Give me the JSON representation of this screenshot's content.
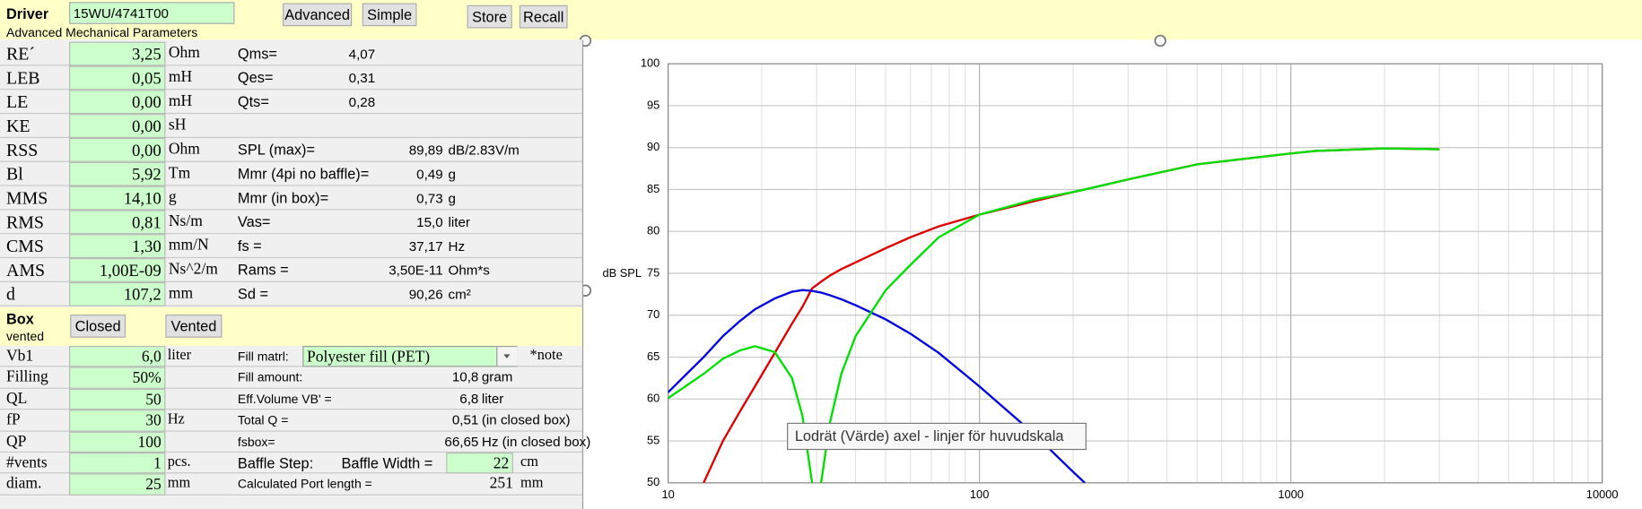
{
  "driver": {
    "label": "Driver",
    "model": "15WU/4741T00",
    "buttons": [
      "Advanced",
      "Simple",
      "Store",
      "Recall"
    ],
    "subtitle": "Advanced Mechanical Parameters"
  },
  "params": [
    {
      "label": "RE´",
      "value": "3,25",
      "unit": "Ohm",
      "name": "Qms=",
      "result": "4,07"
    },
    {
      "label": "LEB",
      "value": "0,05",
      "unit": "mH",
      "name": "Qes=",
      "result": "0,31"
    },
    {
      "label": "LE",
      "value": "0,00",
      "unit": "mH",
      "name": "Qts=",
      "result": "0,28"
    },
    {
      "label": "KE",
      "value": "0,00",
      "unit": "sH"
    },
    {
      "label": "RSS",
      "value": "0,00",
      "unit": "Ohm",
      "name": "SPL (max)=",
      "result": "89,89",
      "result_unit": "dB/2.83V/m"
    },
    {
      "label": "Bl",
      "value": "5,92",
      "unit": "Tm",
      "name": "Mmr (4pi no baffle)=",
      "result": "0,49",
      "result_unit": "g"
    },
    {
      "label": "MMS",
      "value": "14,10",
      "unit": "g",
      "name": "Mmr (in box)=",
      "result": "0,73",
      "result_unit": "g"
    },
    {
      "label": "RMS",
      "value": "0,81",
      "unit": "Ns/m",
      "name": "Vas=",
      "result": "15,0",
      "result_unit": "liter"
    },
    {
      "label": "CMS",
      "value": "1,30",
      "unit": "mm/N",
      "name": "fs =",
      "result": "37,17",
      "result_unit": "Hz"
    },
    {
      "label": "AMS",
      "value": "1,00E-09",
      "unit": "Ns^2/m",
      "name": "Rams =",
      "result": "3,50E-11",
      "result_unit": "Ohm*s"
    },
    {
      "label": "d",
      "value": "107,2",
      "unit": "mm",
      "name": "Sd =",
      "result": "90,26",
      "result_unit": "cm²"
    }
  ],
  "box": {
    "label": "Box",
    "mode": "vented",
    "buttons": [
      "Closed",
      "Vented"
    ],
    "rows": [
      {
        "label": "Vb1",
        "value": "6,0",
        "unit": "liter",
        "name": "Fill matrl:",
        "select": "Polyester fill (PET)",
        "note": "*note"
      },
      {
        "label": "Filling",
        "value": "50%",
        "name": "Fill amount:",
        "result": "10,8",
        "result_unit": "gram"
      },
      {
        "label": "QL",
        "value": "50",
        "name": "Eff.Volume VB' =",
        "result": "6,8",
        "result_unit": "liter"
      },
      {
        "label": "fP",
        "value": "30",
        "unit": "Hz",
        "name": "Total Q =",
        "result": "0,51",
        "result_unit": "(in closed box)"
      },
      {
        "label": "QP",
        "value": "100",
        "name": "fsbox=",
        "result": "66,65",
        "result_unit": "Hz  (in closed box)"
      },
      {
        "label": "#vents",
        "value": "1",
        "unit": "pcs.",
        "name": "Baffle Step:",
        "name2": "Baffle Width  =",
        "input": "22",
        "result_unit": "cm"
      },
      {
        "label": "diam.",
        "value": "25",
        "unit": "mm",
        "name": "Calculated Port length =",
        "result": "251",
        "result_unit": "mm"
      }
    ]
  },
  "chart_data": {
    "type": "line",
    "y_label": "dB SPL",
    "annotation": "Lodrät (Värde) axel - linjer för huvudskala",
    "x": [
      10,
      13,
      15,
      17,
      19,
      22,
      25,
      27,
      29,
      30,
      31,
      33,
      36,
      40,
      50,
      60,
      74,
      100,
      150,
      200,
      218,
      300,
      500,
      1000,
      1200,
      2000,
      3000
    ],
    "series": [
      {
        "color": "#e00000",
        "values": [
          null,
          50,
          55,
          58.5,
          61.5,
          65.5,
          69,
          71,
          73.2,
          73.6,
          74,
          74.7,
          75.5,
          76.3,
          78,
          79.3,
          80.6,
          82,
          83.6,
          84.7,
          85,
          86.2,
          88,
          89.3,
          89.6,
          89.9,
          89.8
        ]
      },
      {
        "color": "#0000e0",
        "values": [
          60.8,
          65,
          67.5,
          69.3,
          70.7,
          72,
          72.8,
          73,
          72.9,
          72.8,
          72.7,
          72.4,
          71.9,
          71.2,
          69.5,
          67.8,
          65.5,
          61.5,
          55.8,
          51.3,
          50,
          null,
          null,
          null,
          null,
          null,
          null
        ]
      },
      {
        "color": "#00e000",
        "values": [
          60.1,
          63,
          64.8,
          65.8,
          66.3,
          65.6,
          62.5,
          58,
          50,
          null,
          50,
          57,
          63,
          67.5,
          73,
          76,
          79.3,
          82,
          83.8,
          84.7,
          85,
          86.2,
          88,
          89.3,
          89.6,
          89.9,
          89.8
        ]
      }
    ],
    "log_x": true,
    "xlim": [
      10,
      10000
    ],
    "xticks": [
      10,
      100,
      1000,
      10000
    ],
    "xminor": [
      20,
      30,
      40,
      50,
      60,
      70,
      80,
      90,
      200,
      300,
      400,
      500,
      600,
      700,
      800,
      900,
      2000,
      3000,
      4000,
      5000,
      6000,
      7000,
      8000,
      9000
    ],
    "ylim": [
      50,
      100
    ],
    "yticks": [
      50,
      55,
      60,
      65,
      70,
      75,
      80,
      85,
      90,
      95,
      100
    ],
    "grid": true
  }
}
